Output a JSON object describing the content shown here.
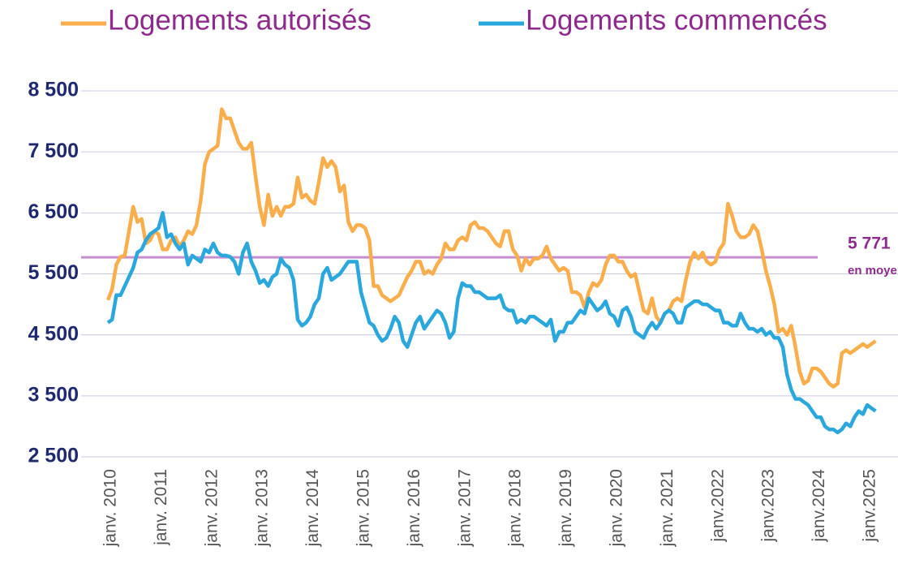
{
  "chart_data": {
    "type": "line",
    "categories": [
      "janv. 2010",
      null,
      null,
      null,
      null,
      null,
      null,
      null,
      null,
      null,
      null,
      null,
      "janv. 2011",
      null,
      null,
      null,
      null,
      null,
      null,
      null,
      null,
      null,
      null,
      null,
      "janv. 2012",
      null,
      null,
      null,
      null,
      null,
      null,
      null,
      null,
      null,
      null,
      null,
      "janv. 2013",
      null,
      null,
      null,
      null,
      null,
      null,
      null,
      null,
      null,
      null,
      null,
      "janv. 2014",
      null,
      null,
      null,
      null,
      null,
      null,
      null,
      null,
      null,
      null,
      null,
      "janv. 2015",
      null,
      null,
      null,
      null,
      null,
      null,
      null,
      null,
      null,
      null,
      null,
      "janv. 2016",
      null,
      null,
      null,
      null,
      null,
      null,
      null,
      null,
      null,
      null,
      null,
      "janv. 2017",
      null,
      null,
      null,
      null,
      null,
      null,
      null,
      null,
      null,
      null,
      null,
      "janv. 2018",
      null,
      null,
      null,
      null,
      null,
      null,
      null,
      null,
      null,
      null,
      null,
      "janv. 2019",
      null,
      null,
      null,
      null,
      null,
      null,
      null,
      null,
      null,
      null,
      null,
      "janv. 2020",
      null,
      null,
      null,
      null,
      null,
      null,
      null,
      null,
      null,
      null,
      null,
      "janv. 2021",
      null,
      null,
      null,
      null,
      null,
      null,
      null,
      null,
      null,
      null,
      null,
      "janv.2022",
      null,
      null,
      null,
      null,
      null,
      null,
      null,
      null,
      null,
      null,
      null,
      "janv.2023",
      null,
      null,
      null,
      null,
      null,
      null,
      null,
      null,
      null,
      null,
      null,
      "janv.2024",
      null,
      null,
      null,
      null,
      null,
      null,
      null,
      null,
      null,
      null,
      null,
      "janv.2025",
      null,
      null
    ],
    "series": [
      {
        "name": "Logements autorisés",
        "color": "#f9ae4b",
        "values": [
          5070,
          5250,
          5650,
          5780,
          5800,
          6200,
          6600,
          6350,
          6400,
          6000,
          6050,
          6200,
          6150,
          5900,
          5900,
          6050,
          6100,
          5950,
          6050,
          6200,
          6150,
          6300,
          6700,
          7300,
          7500,
          7550,
          7600,
          8200,
          8050,
          8050,
          7850,
          7650,
          7550,
          7550,
          7650,
          7100,
          6600,
          6300,
          6800,
          6450,
          6600,
          6450,
          6600,
          6600,
          6650,
          7080,
          6750,
          6800,
          6700,
          6650,
          7000,
          7400,
          7250,
          7350,
          7250,
          6850,
          6950,
          6350,
          6200,
          6300,
          6300,
          6250,
          6050,
          5300,
          5300,
          5150,
          5100,
          5050,
          5100,
          5150,
          5300,
          5450,
          5550,
          5700,
          5700,
          5500,
          5550,
          5500,
          5650,
          5750,
          6000,
          5900,
          5900,
          6050,
          6100,
          6050,
          6300,
          6350,
          6250,
          6250,
          6200,
          6100,
          6000,
          5950,
          6200,
          6200,
          5900,
          5800,
          5550,
          5750,
          5650,
          5750,
          5750,
          5800,
          5950,
          5750,
          5650,
          5550,
          5600,
          5550,
          5200,
          5200,
          5150,
          4950,
          5200,
          5350,
          5300,
          5400,
          5650,
          5800,
          5800,
          5700,
          5700,
          5550,
          5450,
          5500,
          5200,
          4900,
          4850,
          5100,
          4800,
          4700,
          4850,
          4900,
          5050,
          5100,
          5050,
          5400,
          5700,
          5850,
          5750,
          5850,
          5700,
          5650,
          5700,
          5900,
          6000,
          6650,
          6450,
          6200,
          6100,
          6100,
          6150,
          6300,
          6200,
          5900,
          5550,
          5300,
          5000,
          4550,
          4600,
          4500,
          4650,
          4300,
          3900,
          3700,
          3750,
          3950,
          3950,
          3900,
          3800,
          3700,
          3650,
          3700,
          4200,
          4250,
          4200,
          4250,
          4300,
          4350,
          4300,
          4350,
          4400
        ]
      },
      {
        "name": "Logements commencés",
        "color": "#2aa7dc",
        "values": [
          4700,
          4750,
          5150,
          5150,
          5300,
          5450,
          5600,
          5850,
          5900,
          6050,
          6150,
          6200,
          6250,
          6500,
          6100,
          6150,
          6000,
          5900,
          6000,
          5650,
          5800,
          5750,
          5700,
          5900,
          5850,
          6000,
          5850,
          5800,
          5800,
          5780,
          5700,
          5500,
          5850,
          6000,
          5700,
          5550,
          5350,
          5400,
          5300,
          5450,
          5500,
          5750,
          5650,
          5600,
          5400,
          4750,
          4650,
          4700,
          4800,
          5000,
          5100,
          5500,
          5600,
          5400,
          5450,
          5500,
          5600,
          5700,
          5700,
          5700,
          5200,
          4950,
          4700,
          4650,
          4500,
          4400,
          4450,
          4600,
          4800,
          4700,
          4400,
          4300,
          4500,
          4700,
          4800,
          4600,
          4700,
          4800,
          4900,
          4850,
          4700,
          4450,
          4550,
          5100,
          5350,
          5300,
          5300,
          5200,
          5200,
          5150,
          5100,
          5100,
          5100,
          5150,
          4950,
          4900,
          4900,
          4700,
          4750,
          4700,
          4800,
          4800,
          4750,
          4700,
          4650,
          4750,
          4400,
          4550,
          4550,
          4700,
          4700,
          4800,
          4900,
          4850,
          5100,
          5000,
          4900,
          4950,
          5050,
          4850,
          4800,
          4650,
          4900,
          4950,
          4800,
          4550,
          4500,
          4450,
          4600,
          4700,
          4600,
          4700,
          4850,
          4900,
          4850,
          4700,
          4700,
          4950,
          5000,
          5050,
          5050,
          5000,
          5000,
          4950,
          4900,
          4900,
          4700,
          4700,
          4650,
          4650,
          4850,
          4700,
          4600,
          4600,
          4550,
          4600,
          4500,
          4550,
          4450,
          4450,
          4300,
          3850,
          3600,
          3450,
          3450,
          3400,
          3350,
          3250,
          3150,
          3150,
          3000,
          2950,
          2950,
          2900,
          2950,
          3050,
          3000,
          3150,
          3250,
          3200,
          3350,
          3300,
          3250
        ]
      }
    ],
    "ylim": [
      2500,
      8500
    ],
    "yticks": [
      {
        "value": 2500,
        "label": "2 500"
      },
      {
        "value": 3500,
        "label": "3 500"
      },
      {
        "value": 4500,
        "label": "4 500"
      },
      {
        "value": 5500,
        "label": "5 500"
      },
      {
        "value": 6500,
        "label": "6 500"
      },
      {
        "value": 7500,
        "label": "7 500"
      },
      {
        "value": 8500,
        "label": "8 500"
      }
    ],
    "grid": true,
    "reference": {
      "value": 5771,
      "label": "5 771",
      "note": "en moyenne",
      "color": "#c58fd0"
    }
  }
}
